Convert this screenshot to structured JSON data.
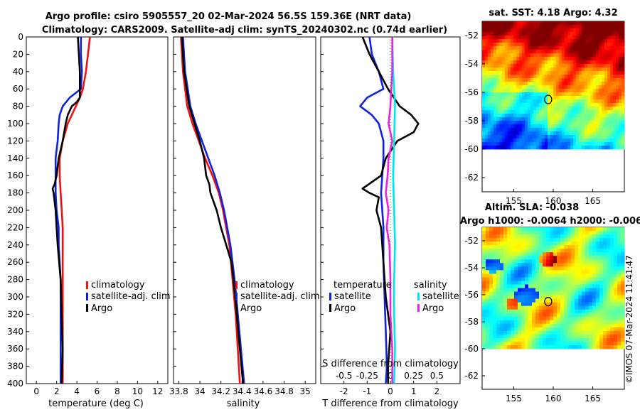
{
  "title_line1": "Argo profile: csiro 5905557_20 02-Mar-2024 56.5S 159.36E (NRT data)",
  "title_line2": "Climatology: CARS2009. Satellite-adj clim: synTS_20240302.nc (0.74d earlier)",
  "watermark": "©IMOS 07-Mar-2024 11:41:47",
  "colors": {
    "climatology": "#ee1111",
    "satellite": "#1122dd",
    "argo": "#000000",
    "sat_salinity": "#00e5ee",
    "argo_salinity": "#ee22dd"
  },
  "chart_data": [
    {
      "type": "line",
      "name": "temperature",
      "xlabel": "temperature (deg C)",
      "ylabel": "",
      "xlim": [
        -1,
        13
      ],
      "ylim": [
        400,
        0
      ],
      "xticks": [
        "0",
        "2",
        "4",
        "6",
        "8",
        "10",
        "12"
      ],
      "yticks": [
        "0",
        "20",
        "40",
        "60",
        "80",
        "100",
        "120",
        "140",
        "160",
        "180",
        "200",
        "220",
        "240",
        "260",
        "280",
        "300",
        "320",
        "340",
        "360",
        "380",
        "400"
      ],
      "legend": [
        "climatology",
        "satellite-adj. clim",
        "Argo"
      ],
      "series": [
        {
          "name": "climatology",
          "depth": [
            0,
            20,
            40,
            60,
            70,
            80,
            90,
            100,
            120,
            140,
            160,
            180,
            200,
            220,
            240,
            300,
            360,
            400
          ],
          "values": [
            5.3,
            5.1,
            4.9,
            4.6,
            4.3,
            3.9,
            3.5,
            3.1,
            2.6,
            2.3,
            2.3,
            2.4,
            2.5,
            2.6,
            2.6,
            2.6,
            2.6,
            2.6
          ]
        },
        {
          "name": "satellite-adj. clim",
          "depth": [
            0,
            20,
            40,
            60,
            70,
            80,
            90,
            100,
            120,
            140,
            160,
            180,
            200,
            220,
            240,
            280,
            320,
            360,
            400
          ],
          "values": [
            4.4,
            4.4,
            4.5,
            4.4,
            3.3,
            2.6,
            2.3,
            2.2,
            2.1,
            1.9,
            1.9,
            1.9,
            2.0,
            2.2,
            2.2,
            2.4,
            2.4,
            2.4,
            2.4
          ]
        },
        {
          "name": "Argo",
          "depth": [
            0,
            20,
            40,
            60,
            70,
            75,
            80,
            90,
            100,
            120,
            140,
            160,
            170,
            175,
            180,
            190,
            200,
            220,
            240,
            280,
            320,
            360,
            400
          ],
          "values": [
            4.1,
            4.2,
            4.3,
            4.3,
            4.3,
            4.0,
            3.5,
            3.1,
            2.9,
            2.6,
            2.2,
            2.0,
            1.8,
            1.6,
            1.7,
            1.8,
            1.9,
            2.0,
            2.1,
            2.4,
            2.5,
            2.6,
            2.5
          ]
        }
      ]
    },
    {
      "type": "line",
      "name": "salinity",
      "xlabel": "salinity",
      "ylabel": "",
      "xlim": [
        33.75,
        35.1
      ],
      "ylim": [
        400,
        0
      ],
      "xticks": [
        "33.8",
        "34",
        "34.2",
        "34.4",
        "34.6",
        "34.8",
        "35"
      ],
      "legend": [
        "climatology",
        "satellite-adj. clim",
        "Argo"
      ],
      "series": [
        {
          "name": "climatology",
          "depth": [
            0,
            40,
            80,
            100,
            120,
            140,
            160,
            180,
            200,
            240,
            280,
            320,
            360,
            400
          ],
          "values": [
            33.82,
            33.84,
            33.88,
            33.93,
            33.99,
            34.05,
            34.12,
            34.18,
            34.22,
            34.28,
            34.31,
            34.34,
            34.36,
            34.38
          ]
        },
        {
          "name": "satellite-adj. clim",
          "depth": [
            0,
            40,
            80,
            100,
            120,
            140,
            160,
            180,
            200,
            240,
            280,
            320,
            360,
            400
          ],
          "values": [
            33.84,
            33.86,
            33.91,
            33.96,
            34.02,
            34.08,
            34.14,
            34.19,
            34.23,
            34.29,
            34.33,
            34.36,
            34.39,
            34.42
          ]
        },
        {
          "name": "Argo",
          "depth": [
            0,
            40,
            80,
            100,
            120,
            140,
            160,
            170,
            180,
            200,
            220,
            240,
            260,
            280,
            320,
            360,
            400
          ],
          "values": [
            33.83,
            33.85,
            33.9,
            33.95,
            34.0,
            34.04,
            34.06,
            34.09,
            34.1,
            34.16,
            34.2,
            34.25,
            34.3,
            34.32,
            34.35,
            34.38,
            34.41
          ]
        }
      ]
    },
    {
      "type": "line",
      "name": "difference",
      "xlabel": "T difference from climatology",
      "x2label": "S difference from climatology",
      "xlim": [
        -3,
        3
      ],
      "ylim": [
        400,
        0
      ],
      "xticks": [
        "-2",
        "-1",
        "0",
        "1",
        "2"
      ],
      "x2ticks": [
        "-0.5",
        "-0.25",
        "0",
        "0.25",
        "0.5"
      ],
      "legend_temperature_heading": "temperature",
      "legend_salinity_heading": "salinity",
      "legend_items": [
        "satellite",
        "Argo",
        "satellite",
        "Argo"
      ],
      "series": [
        {
          "name": "temperature satellite",
          "depth": [
            0,
            20,
            40,
            60,
            70,
            80,
            90,
            100,
            120,
            140,
            180,
            220,
            260,
            300,
            340,
            380,
            400
          ],
          "values": [
            -0.9,
            -0.8,
            -0.5,
            -0.3,
            -1.0,
            -1.3,
            -0.8,
            -0.5,
            -0.3,
            -0.3,
            -0.4,
            -0.3,
            -0.3,
            -0.25,
            -0.2,
            -0.15,
            -0.2
          ]
        },
        {
          "name": "temperature Argo",
          "depth": [
            0,
            20,
            40,
            60,
            80,
            90,
            100,
            110,
            120,
            140,
            160,
            175,
            180,
            185,
            200,
            220,
            260,
            300,
            340,
            380,
            400
          ],
          "values": [
            -1.2,
            -0.9,
            -0.5,
            -0.1,
            0.4,
            0.9,
            1.2,
            1.0,
            0.3,
            -0.2,
            -0.4,
            -1.2,
            -0.9,
            -0.5,
            -0.6,
            -0.4,
            -0.3,
            -0.2,
            0.0,
            -0.1,
            -0.1
          ]
        },
        {
          "name": "salinity satellite",
          "depth": [
            0,
            40,
            80,
            120,
            160,
            200,
            240,
            280,
            320,
            360,
            400
          ],
          "values": [
            0.02,
            0.03,
            0.05,
            0.04,
            0.03,
            0.04,
            0.05,
            0.04,
            0.04,
            0.05,
            0.04
          ]
        },
        {
          "name": "salinity Argo",
          "depth": [
            0,
            40,
            80,
            100,
            120,
            140,
            160,
            180,
            200,
            220,
            240,
            280,
            320,
            360,
            400
          ],
          "values": [
            0.02,
            0.02,
            0.0,
            -0.02,
            0.02,
            -0.02,
            -0.03,
            -0.05,
            -0.02,
            -0.04,
            -0.01,
            0.0,
            0.0,
            0.02,
            0.02
          ]
        }
      ]
    },
    {
      "type": "heatmap",
      "name": "sat-sst-map",
      "title": "sat. SST: 4.18 Argo: 4.32",
      "yticks": [
        "-52",
        "-54",
        "-56",
        "-58",
        "-60",
        "-62"
      ],
      "xticks": [
        "155",
        "160",
        "165"
      ],
      "xlim": [
        151,
        169
      ],
      "ylim": [
        -63,
        -51
      ],
      "argo_position": {
        "lon": 159.36,
        "lat": -56.5
      }
    },
    {
      "type": "heatmap",
      "name": "altim-sla-map",
      "title_line1": "Altim. SLA: -0.038",
      "title_line2": "Argo h1000: -0.0064 h2000: -0.006",
      "yticks": [
        "-52",
        "-54",
        "-56",
        "-58",
        "-60",
        "-62"
      ],
      "xticks": [
        "155",
        "160",
        "165"
      ],
      "xlim": [
        151,
        169
      ],
      "ylim": [
        -63,
        -51
      ],
      "argo_position": {
        "lon": 159.36,
        "lat": -56.5
      }
    }
  ]
}
